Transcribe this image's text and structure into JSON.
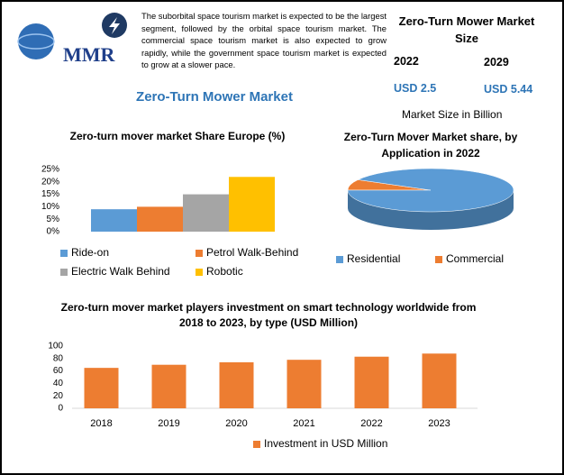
{
  "header": {
    "logo": "MMR",
    "description": "The suborbital space tourism market is expected to be the largest segment, followed by the orbital space tourism market. The commercial space tourism market is also expected to grow rapidly, while the government space tourism market is expected to grow at a slower pace.",
    "market_size": {
      "title": "Zero-Turn Mower Market Size",
      "years": [
        "2022",
        "2029"
      ],
      "values": [
        "USD 2.5",
        "USD 5.44"
      ],
      "unit_note": "Market Size in Billion"
    },
    "main_title": "Zero-Turn Mower Market"
  },
  "chart_data": [
    {
      "type": "bar",
      "title": "Zero-turn mover market Share Europe (%)",
      "categories": [
        "Ride-on",
        "Petrol Walk-Behind",
        "Electric Walk Behind",
        "Robotic"
      ],
      "values": [
        9,
        10,
        15,
        22
      ],
      "colors": [
        "#5b9bd5",
        "#ed7d31",
        "#a5a5a5",
        "#ffc000"
      ],
      "ylim": [
        0,
        25
      ],
      "yticks": [
        {
          "value": 0,
          "label": "0%"
        },
        {
          "value": 5,
          "label": "5%"
        },
        {
          "value": 10,
          "label": "10%"
        },
        {
          "value": 15,
          "label": "15%"
        },
        {
          "value": 20,
          "label": "20%"
        },
        {
          "value": 25,
          "label": "25%"
        }
      ],
      "grid": false
    },
    {
      "type": "pie",
      "title": "Zero-Turn Mover Market share, by Application in 2022",
      "categories": [
        "Residential",
        "Commercial"
      ],
      "values": [
        92,
        8
      ],
      "colors": [
        "#5b9bd5",
        "#ed7d31"
      ]
    },
    {
      "type": "bar",
      "title": "Zero-turn mover market players investment on smart technology worldwide from 2018 to 2023, by type (USD Million)",
      "categories": [
        "2018",
        "2019",
        "2020",
        "2021",
        "2022",
        "2023"
      ],
      "series": [
        {
          "name": "Investment in USD Million",
          "color": "#ed7d31",
          "values": [
            65,
            70,
            74,
            78,
            83,
            88
          ]
        }
      ],
      "ylim": [
        0,
        100
      ],
      "yticks": [
        0,
        20,
        40,
        60,
        80,
        100
      ],
      "grid": false
    }
  ]
}
